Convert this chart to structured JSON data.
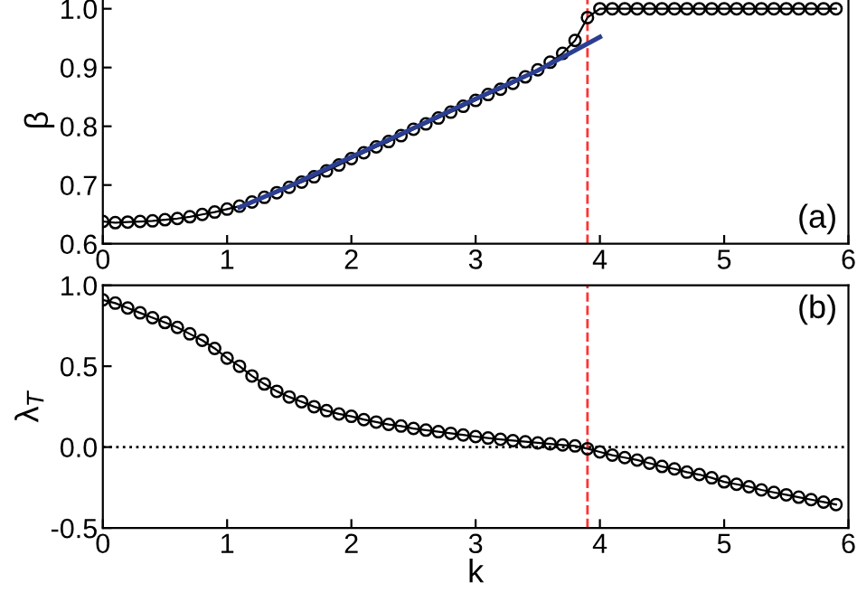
{
  "chart_data": [
    {
      "type": "line",
      "ylabel": "β",
      "xlim": [
        0,
        6
      ],
      "ylim": [
        0.6,
        1.02
      ],
      "xticks": [
        0,
        1,
        2,
        3,
        4,
        5,
        6
      ],
      "yticks": [
        {
          "value": 0.6,
          "label": "0.6"
        },
        {
          "value": 0.7,
          "label": "0.7"
        },
        {
          "value": 0.8,
          "label": "0.8"
        },
        {
          "value": 0.9,
          "label": "0.9"
        },
        {
          "value": 1.0,
          "label": "1.0"
        }
      ],
      "grid": false,
      "annotations": [
        "(a)"
      ],
      "x": [
        0,
        0.1,
        0.2,
        0.3,
        0.4,
        0.5,
        0.6,
        0.7,
        0.8,
        0.9,
        1.0,
        1.1,
        1.2,
        1.3,
        1.4,
        1.5,
        1.6,
        1.7,
        1.8,
        1.9,
        2.0,
        2.1,
        2.2,
        2.3,
        2.4,
        2.5,
        2.6,
        2.7,
        2.8,
        2.9,
        3.0,
        3.1,
        3.2,
        3.3,
        3.4,
        3.5,
        3.6,
        3.7,
        3.8,
        3.9,
        4.0,
        4.1,
        4.2,
        4.3,
        4.4,
        4.5,
        4.6,
        4.7,
        4.8,
        4.9,
        5.0,
        5.1,
        5.2,
        5.3,
        5.4,
        5.5,
        5.6,
        5.7,
        5.8,
        5.9
      ],
      "series": [
        {
          "color": "#000000",
          "marker": "circle",
          "values": [
            0.638,
            0.636,
            0.637,
            0.638,
            0.639,
            0.641,
            0.643,
            0.646,
            0.65,
            0.654,
            0.659,
            0.664,
            0.671,
            0.679,
            0.687,
            0.696,
            0.705,
            0.714,
            0.724,
            0.734,
            0.745,
            0.755,
            0.765,
            0.774,
            0.784,
            0.795,
            0.804,
            0.814,
            0.824,
            0.834,
            0.844,
            0.854,
            0.863,
            0.873,
            0.884,
            0.896,
            0.909,
            0.924,
            0.946,
            0.985,
            1.0,
            1.0,
            1.0,
            1.0,
            1.0,
            1.0,
            1.0,
            1.0,
            1.0,
            1.0,
            1.0,
            1.0,
            1.0,
            1.0,
            1.0,
            1.0,
            1.0,
            1.0,
            1.0,
            1.0
          ]
        },
        {
          "color": "#2b3e91",
          "marker": "none",
          "x": [
            1.1,
            1.5,
            2.0,
            2.5,
            3.0,
            3.5,
            4.0
          ],
          "values": [
            0.662,
            0.698,
            0.748,
            0.797,
            0.847,
            0.895,
            0.952
          ]
        }
      ],
      "ref_lines": [
        {
          "axis": "x",
          "value": 3.9,
          "color": "#ff3333",
          "line_style": "dashed"
        }
      ]
    },
    {
      "type": "line",
      "xlabel": "k",
      "ylabel": "λ$_{T}$",
      "xlim": [
        0,
        6
      ],
      "ylim": [
        -0.5,
        1.0
      ],
      "xticks": [
        0,
        1,
        2,
        3,
        4,
        5,
        6
      ],
      "yticks": [
        -0.5,
        {
          "value": 0.0,
          "label": "0.0"
        },
        0.5,
        {
          "value": 1.0,
          "label": "1.0"
        }
      ],
      "grid": false,
      "annotations": [
        "(b)"
      ],
      "x": [
        0,
        0.1,
        0.2,
        0.3,
        0.4,
        0.5,
        0.6,
        0.7,
        0.8,
        0.9,
        1.0,
        1.1,
        1.2,
        1.3,
        1.4,
        1.5,
        1.6,
        1.7,
        1.8,
        1.9,
        2.0,
        2.1,
        2.2,
        2.3,
        2.4,
        2.5,
        2.6,
        2.7,
        2.8,
        2.9,
        3.0,
        3.1,
        3.2,
        3.3,
        3.4,
        3.5,
        3.6,
        3.7,
        3.8,
        3.9,
        4.0,
        4.1,
        4.2,
        4.3,
        4.4,
        4.5,
        4.6,
        4.7,
        4.8,
        4.9,
        5.0,
        5.1,
        5.2,
        5.3,
        5.4,
        5.5,
        5.6,
        5.7,
        5.8,
        5.9
      ],
      "series": [
        {
          "color": "#000000",
          "marker": "circle",
          "values": [
            0.91,
            0.89,
            0.86,
            0.83,
            0.8,
            0.77,
            0.74,
            0.7,
            0.66,
            0.61,
            0.55,
            0.5,
            0.44,
            0.39,
            0.345,
            0.31,
            0.28,
            0.25,
            0.225,
            0.205,
            0.19,
            0.17,
            0.155,
            0.14,
            0.13,
            0.115,
            0.105,
            0.095,
            0.085,
            0.075,
            0.065,
            0.056,
            0.048,
            0.04,
            0.033,
            0.026,
            0.02,
            0.013,
            0.007,
            -0.01,
            -0.03,
            -0.05,
            -0.065,
            -0.08,
            -0.1,
            -0.12,
            -0.135,
            -0.155,
            -0.17,
            -0.19,
            -0.215,
            -0.23,
            -0.245,
            -0.265,
            -0.28,
            -0.295,
            -0.31,
            -0.325,
            -0.34,
            -0.355
          ]
        }
      ],
      "ref_lines": [
        {
          "axis": "y",
          "value": 0.0,
          "color": "#000000",
          "line_style": "dotted"
        },
        {
          "axis": "x",
          "value": 3.9,
          "color": "#ff3333",
          "line_style": "dashed"
        }
      ]
    }
  ]
}
